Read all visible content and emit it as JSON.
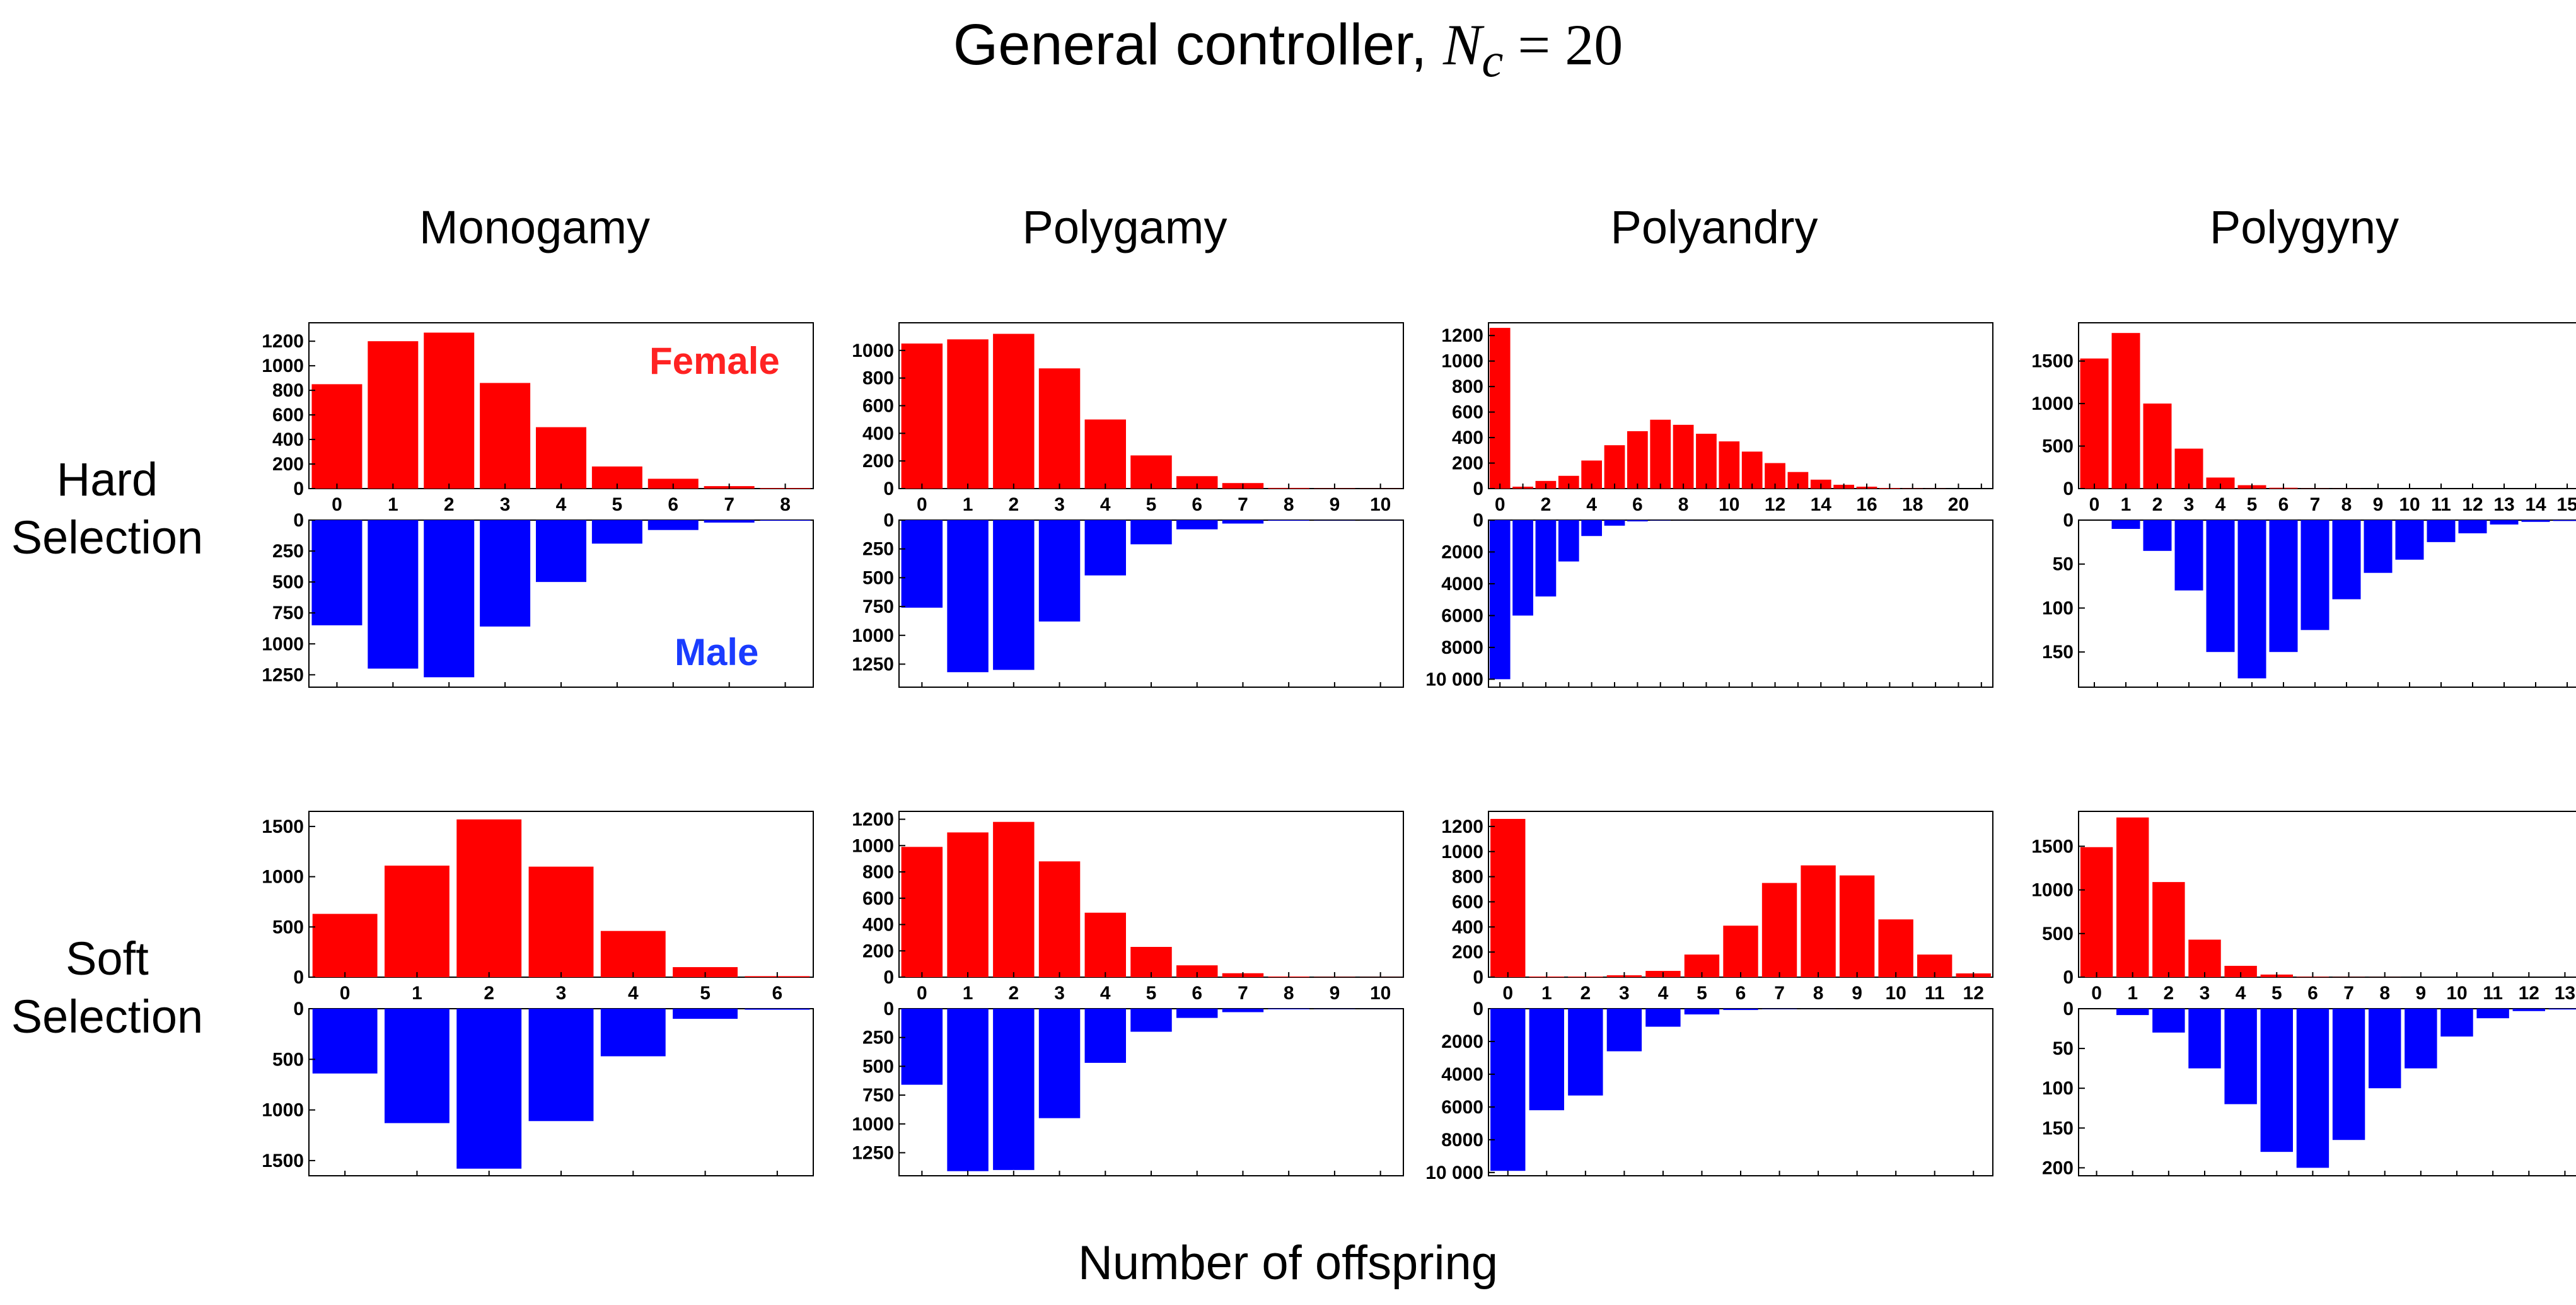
{
  "title": {
    "prefix": "General controller, ",
    "math_symbol": "N",
    "math_subscript": "c",
    "math_rest": " = 20"
  },
  "columns": [
    "Monogamy",
    "Polygamy",
    "Polyandry",
    "Polygyny"
  ],
  "rows": [
    {
      "line1": "Hard",
      "line2": "Selection"
    },
    {
      "line1": "Soft",
      "line2": "Selection"
    }
  ],
  "legend": {
    "female": "Female",
    "male": "Male"
  },
  "xlabel": "Number of offspring",
  "colors": {
    "female": "#ff0000",
    "male": "#0000ff"
  },
  "chart_data": [
    {
      "type": "bar",
      "row": "Hard Selection",
      "column": "Monogamy",
      "categories": [
        0,
        1,
        2,
        3,
        4,
        5,
        6,
        7,
        8
      ],
      "x_tick_labels": [
        "0",
        "1",
        "2",
        "3",
        "4",
        "5",
        "6",
        "7",
        "8"
      ],
      "female": [
        850,
        1200,
        1270,
        860,
        500,
        180,
        80,
        20,
        5
      ],
      "male": [
        850,
        1200,
        1270,
        860,
        500,
        190,
        80,
        20,
        5
      ],
      "female_ylim": [
        0,
        1350
      ],
      "female_yticks": [
        0,
        200,
        400,
        600,
        800,
        1000,
        1200
      ],
      "male_ylim": [
        0,
        1350
      ],
      "male_yticks": [
        0,
        250,
        500,
        750,
        1000,
        1250
      ]
    },
    {
      "type": "bar",
      "row": "Hard Selection",
      "column": "Polygamy",
      "categories": [
        0,
        1,
        2,
        3,
        4,
        5,
        6,
        7,
        8,
        9,
        10
      ],
      "x_tick_labels": [
        "0",
        "1",
        "2",
        "3",
        "4",
        "5",
        "6",
        "7",
        "8",
        "9",
        "10"
      ],
      "female": [
        1050,
        1080,
        1120,
        870,
        500,
        240,
        90,
        40,
        5,
        2,
        1
      ],
      "male": [
        760,
        1320,
        1300,
        880,
        480,
        210,
        80,
        30,
        5,
        2,
        1
      ],
      "female_ylim": [
        0,
        1200
      ],
      "female_yticks": [
        0,
        200,
        400,
        600,
        800,
        1000
      ],
      "male_ylim": [
        0,
        1450
      ],
      "male_yticks": [
        0,
        250,
        500,
        750,
        1000,
        1250
      ]
    },
    {
      "type": "bar",
      "row": "Hard Selection",
      "column": "Polyandry",
      "categories": [
        0,
        1,
        2,
        3,
        4,
        5,
        6,
        7,
        8,
        9,
        10,
        11,
        12,
        13,
        14,
        15,
        16,
        17,
        18,
        19,
        20,
        21
      ],
      "x_tick_labels": [
        "0",
        "",
        "2",
        "",
        "4",
        "",
        "6",
        "",
        "8",
        "",
        "10",
        "",
        "12",
        "",
        "14",
        "",
        "16",
        "",
        "18",
        "",
        "20",
        ""
      ],
      "female": [
        1260,
        15,
        60,
        100,
        220,
        340,
        450,
        540,
        500,
        430,
        370,
        290,
        200,
        130,
        70,
        30,
        15,
        5,
        2,
        1,
        0,
        0
      ],
      "male": [
        10000,
        6000,
        4800,
        2600,
        1000,
        350,
        80,
        20,
        5,
        2,
        1,
        0,
        0,
        0,
        0,
        0,
        0,
        0,
        0,
        0,
        0,
        0
      ],
      "female_ylim": [
        0,
        1300
      ],
      "female_yticks": [
        0,
        200,
        400,
        600,
        800,
        1000,
        1200
      ],
      "male_ylim": [
        0,
        10500
      ],
      "male_yticks": [
        0,
        2000,
        4000,
        6000,
        8000,
        10000
      ]
    },
    {
      "type": "bar",
      "row": "Hard Selection",
      "column": "Polygyny",
      "categories": [
        0,
        1,
        2,
        3,
        4,
        5,
        6,
        7,
        8,
        9,
        10,
        11,
        12,
        13,
        14,
        15
      ],
      "x_tick_labels": [
        "0",
        "1",
        "2",
        "3",
        "4",
        "5",
        "6",
        "7",
        "8",
        "9",
        "10",
        "11",
        "12",
        "13",
        "14",
        "15"
      ],
      "female": [
        1530,
        1830,
        1000,
        470,
        130,
        40,
        10,
        2,
        1,
        0,
        0,
        0,
        0,
        0,
        0,
        0
      ],
      "male": [
        0,
        10,
        35,
        80,
        150,
        180,
        150,
        125,
        90,
        60,
        45,
        25,
        15,
        5,
        2,
        1
      ],
      "female_ylim": [
        0,
        1950
      ],
      "female_yticks": [
        0,
        500,
        1000,
        1500
      ],
      "male_ylim": [
        0,
        190
      ],
      "male_yticks": [
        0,
        50,
        100,
        150
      ]
    },
    {
      "type": "bar",
      "row": "Soft Selection",
      "column": "Monogamy",
      "categories": [
        0,
        1,
        2,
        3,
        4,
        5,
        6
      ],
      "x_tick_labels": [
        "0",
        "1",
        "2",
        "3",
        "4",
        "5",
        "6"
      ],
      "female": [
        630,
        1110,
        1570,
        1100,
        460,
        100,
        10
      ],
      "male": [
        640,
        1130,
        1580,
        1110,
        470,
        100,
        10
      ],
      "female_ylim": [
        0,
        1650
      ],
      "female_yticks": [
        0,
        500,
        1000,
        1500
      ],
      "male_ylim": [
        0,
        1650
      ],
      "male_yticks": [
        500,
        1000,
        1500
      ]
    },
    {
      "type": "bar",
      "row": "Soft Selection",
      "column": "Polygamy",
      "categories": [
        0,
        1,
        2,
        3,
        4,
        5,
        6,
        7,
        8,
        9,
        10
      ],
      "x_tick_labels": [
        "0",
        "1",
        "2",
        "3",
        "4",
        "5",
        "6",
        "7",
        "8",
        "9",
        "10"
      ],
      "female": [
        990,
        1100,
        1180,
        880,
        490,
        230,
        90,
        30,
        5,
        2,
        1
      ],
      "male": [
        660,
        1410,
        1400,
        950,
        470,
        200,
        80,
        30,
        5,
        2,
        1
      ],
      "female_ylim": [
        0,
        1260
      ],
      "female_yticks": [
        0,
        200,
        400,
        600,
        800,
        1000,
        1200
      ],
      "male_ylim": [
        0,
        1450
      ],
      "male_yticks": [
        250,
        500,
        750,
        1000,
        1250
      ]
    },
    {
      "type": "bar",
      "row": "Soft Selection",
      "column": "Polyandry",
      "categories": [
        0,
        1,
        2,
        3,
        4,
        5,
        6,
        7,
        8,
        9,
        10,
        11,
        12
      ],
      "x_tick_labels": [
        "0",
        "1",
        "2",
        "3",
        "4",
        "5",
        "6",
        "7",
        "8",
        "9",
        "10",
        "11",
        "12"
      ],
      "female": [
        1260,
        5,
        5,
        15,
        50,
        180,
        410,
        750,
        890,
        810,
        460,
        180,
        30
      ],
      "male": [
        9900,
        6200,
        5300,
        2600,
        1100,
        350,
        80,
        20,
        5,
        2,
        1,
        0,
        0
      ],
      "female_ylim": [
        0,
        1320
      ],
      "female_yticks": [
        0,
        200,
        400,
        600,
        800,
        1000,
        1200
      ],
      "male_ylim": [
        0,
        10200
      ],
      "male_yticks": [
        2000,
        4000,
        6000,
        8000,
        10000
      ]
    },
    {
      "type": "bar",
      "row": "Soft Selection",
      "column": "Polygyny",
      "categories": [
        0,
        1,
        2,
        3,
        4,
        5,
        6,
        7,
        8,
        9,
        10,
        11,
        12,
        13
      ],
      "x_tick_labels": [
        "0",
        "1",
        "2",
        "3",
        "4",
        "5",
        "6",
        "7",
        "8",
        "9",
        "10",
        "11",
        "12",
        "13"
      ],
      "female": [
        1490,
        1830,
        1090,
        430,
        130,
        30,
        5,
        2,
        1,
        0,
        0,
        0,
        0,
        0
      ],
      "male": [
        0,
        8,
        30,
        75,
        120,
        180,
        200,
        165,
        100,
        75,
        35,
        12,
        3,
        1
      ],
      "female_ylim": [
        0,
        1900
      ],
      "female_yticks": [
        0,
        500,
        1000,
        1500
      ],
      "male_ylim": [
        0,
        210
      ],
      "male_yticks": [
        0,
        50,
        100,
        150,
        200
      ]
    }
  ]
}
